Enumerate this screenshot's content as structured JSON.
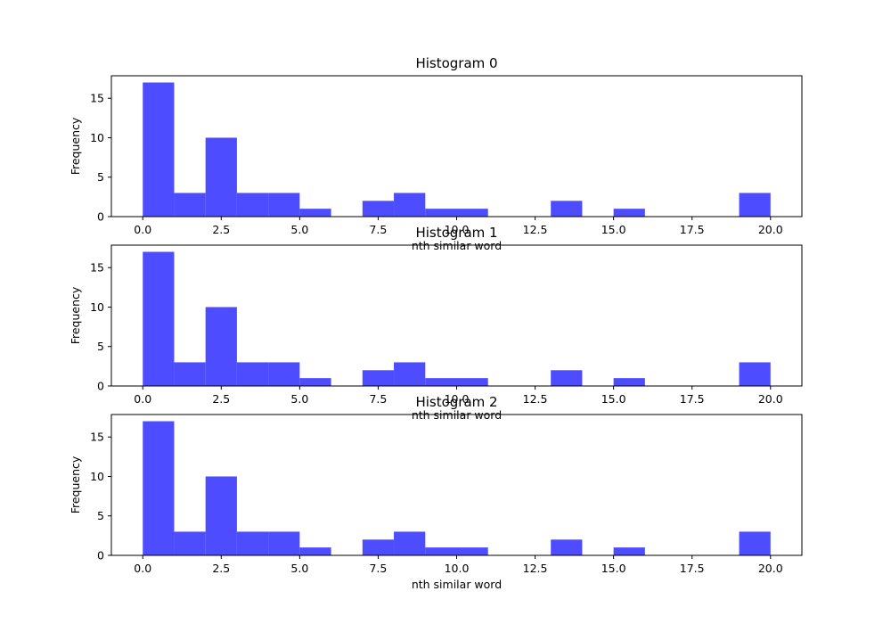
{
  "chart_data": [
    {
      "type": "bar",
      "title": "Histogram 0",
      "xlabel": "nth similar word",
      "ylabel": "Frequency",
      "bin_edges": [
        0,
        1,
        2,
        3,
        4,
        5,
        6,
        7,
        8,
        9,
        10,
        11,
        12,
        13,
        14,
        15,
        16,
        17,
        18,
        19,
        20
      ],
      "values": [
        17,
        3,
        10,
        3,
        3,
        1,
        0,
        2,
        3,
        1,
        1,
        0,
        0,
        2,
        0,
        1,
        0,
        0,
        0,
        3
      ],
      "xlim": [
        -1,
        21
      ],
      "ylim": [
        0,
        17.85
      ],
      "xticks": [
        0,
        2.5,
        5,
        7.5,
        10,
        12.5,
        15,
        17.5,
        20
      ],
      "xtick_labels": [
        "0.0",
        "2.5",
        "5.0",
        "7.5",
        "10.0",
        "12.5",
        "15.0",
        "17.5",
        "20.0"
      ],
      "yticks": [
        0,
        5,
        10,
        15
      ],
      "ytick_labels": [
        "0",
        "5",
        "10",
        "15"
      ],
      "bar_color": "#4d4dff",
      "grid": false
    },
    {
      "type": "bar",
      "title": "Histogram 1",
      "xlabel": "nth similar word",
      "ylabel": "Frequency",
      "bin_edges": [
        0,
        1,
        2,
        3,
        4,
        5,
        6,
        7,
        8,
        9,
        10,
        11,
        12,
        13,
        14,
        15,
        16,
        17,
        18,
        19,
        20
      ],
      "values": [
        17,
        3,
        10,
        3,
        3,
        1,
        0,
        2,
        3,
        1,
        1,
        0,
        0,
        2,
        0,
        1,
        0,
        0,
        0,
        3
      ],
      "xlim": [
        -1,
        21
      ],
      "ylim": [
        0,
        17.85
      ],
      "xticks": [
        0,
        2.5,
        5,
        7.5,
        10,
        12.5,
        15,
        17.5,
        20
      ],
      "xtick_labels": [
        "0.0",
        "2.5",
        "5.0",
        "7.5",
        "10.0",
        "12.5",
        "15.0",
        "17.5",
        "20.0"
      ],
      "yticks": [
        0,
        5,
        10,
        15
      ],
      "ytick_labels": [
        "0",
        "5",
        "10",
        "15"
      ],
      "bar_color": "#4d4dff",
      "grid": false
    },
    {
      "type": "bar",
      "title": "Histogram 2",
      "xlabel": "nth similar word",
      "ylabel": "Frequency",
      "bin_edges": [
        0,
        1,
        2,
        3,
        4,
        5,
        6,
        7,
        8,
        9,
        10,
        11,
        12,
        13,
        14,
        15,
        16,
        17,
        18,
        19,
        20
      ],
      "values": [
        17,
        3,
        10,
        3,
        3,
        1,
        0,
        2,
        3,
        1,
        1,
        0,
        0,
        2,
        0,
        1,
        0,
        0,
        0,
        3
      ],
      "xlim": [
        -1,
        21
      ],
      "ylim": [
        0,
        17.85
      ],
      "xticks": [
        0,
        2.5,
        5,
        7.5,
        10,
        12.5,
        15,
        17.5,
        20
      ],
      "xtick_labels": [
        "0.0",
        "2.5",
        "5.0",
        "7.5",
        "10.0",
        "12.5",
        "15.0",
        "17.5",
        "20.0"
      ],
      "yticks": [
        0,
        5,
        10,
        15
      ],
      "ytick_labels": [
        "0",
        "5",
        "10",
        "15"
      ],
      "bar_color": "#4d4dff",
      "grid": false
    }
  ]
}
